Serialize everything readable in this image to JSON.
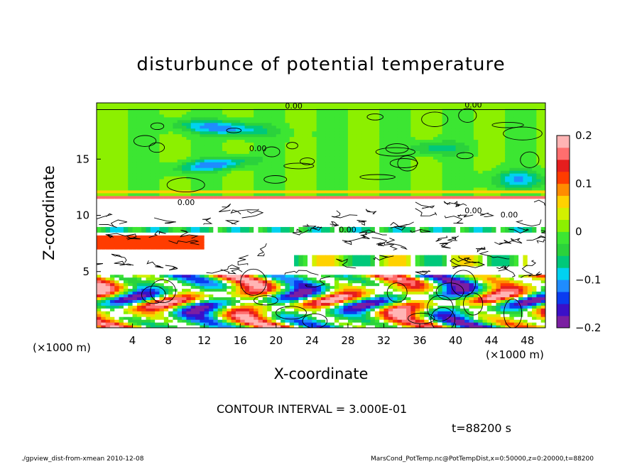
{
  "figure": {
    "title": "disturbunce of potential temperature",
    "contour_interval": "CONTOUR INTERVAL = 3.000E-01",
    "time": "t=88200 s",
    "footer_left": "./gpview_dist-from-xmean  2010-12-08",
    "footer_right": "MarsCond_PotTemp.nc@PotTempDist,x=0:50000,z=0:20000,t=88200",
    "contour_labels": [
      "0.00",
      "0.00",
      "0.00",
      "0.00",
      "0.00",
      "0.00",
      "0.00"
    ]
  },
  "chart_data": {
    "type": "heatmap",
    "title": "disturbunce of potential temperature",
    "xlabel": "X-coordinate",
    "ylabel": "Z-coordinate",
    "x_unit": "(×1000 m)",
    "x_unit_right": "(×1000 m)",
    "xlim": [
      0,
      50
    ],
    "ylim": [
      0,
      20
    ],
    "x_ticks": [
      "4",
      "8",
      "12",
      "16",
      "20",
      "24",
      "28",
      "32",
      "36",
      "40",
      "44",
      "48"
    ],
    "x_tick_values": [
      4,
      8,
      12,
      16,
      20,
      24,
      28,
      32,
      36,
      40,
      44,
      48
    ],
    "y_ticks": [
      "5",
      "10",
      "15"
    ],
    "y_tick_values": [
      5,
      10,
      15
    ],
    "colorbar": {
      "range": [
        -0.2,
        0.2
      ],
      "tick_labels": [
        "0.2",
        "0.1",
        "0",
        "−0.1",
        "−0.2"
      ],
      "tick_values": [
        0.2,
        0.1,
        0,
        -0.1,
        -0.2
      ],
      "colors": [
        "#7b1fa2",
        "#3b10c8",
        "#0a3cf0",
        "#1f8cff",
        "#00d2f0",
        "#00c87a",
        "#2bd23c",
        "#3ce632",
        "#8cf000",
        "#d2f000",
        "#ffd200",
        "#ff8c00",
        "#ff3c00",
        "#e61e1e",
        "#ff6e6e",
        "#ffb4b4"
      ]
    },
    "layers": [
      {
        "z": [
          0,
          4.8
        ],
        "pattern": "convective"
      },
      {
        "z": [
          4.8,
          11.4
        ],
        "pattern": "mixed"
      },
      {
        "z": [
          11.4,
          11.6
        ],
        "pattern": "hot-band"
      },
      {
        "z": [
          11.6,
          19.6
        ],
        "pattern": "neutral"
      }
    ]
  }
}
